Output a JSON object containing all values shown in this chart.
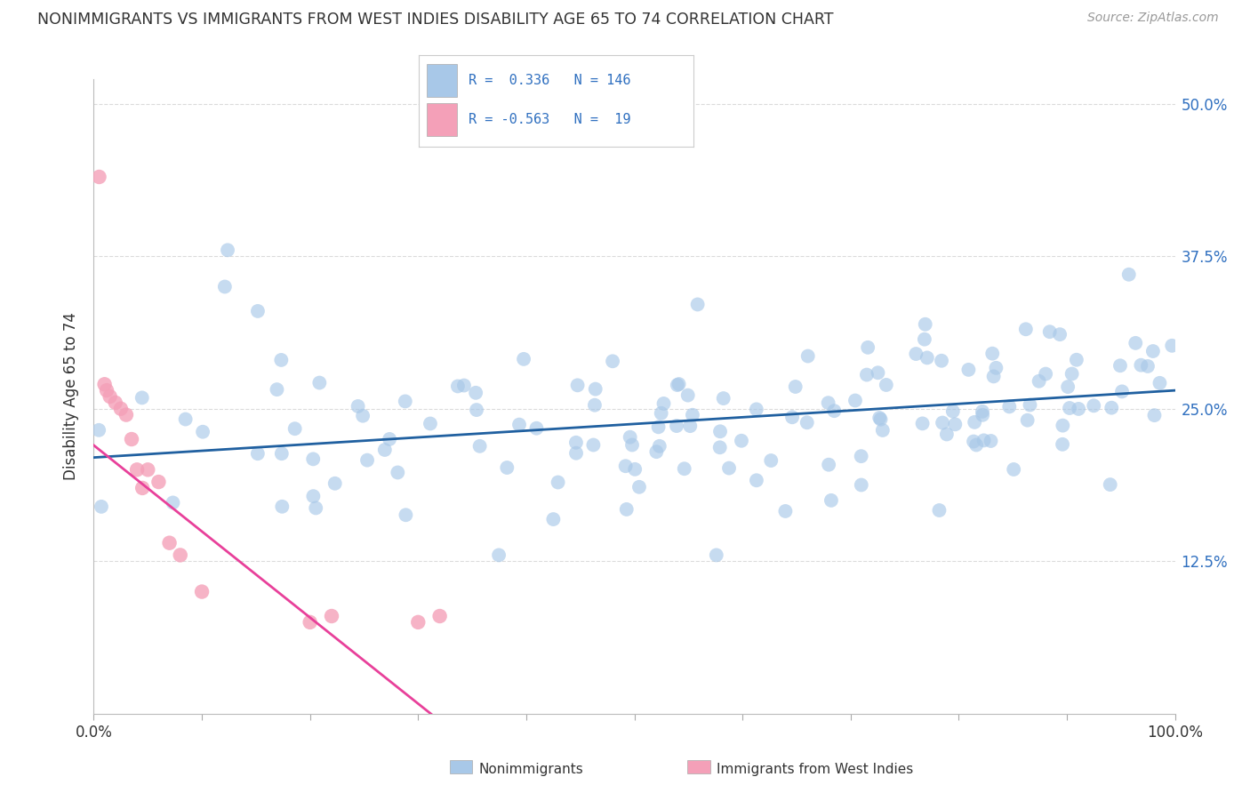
{
  "title": "NONIMMIGRANTS VS IMMIGRANTS FROM WEST INDIES DISABILITY AGE 65 TO 74 CORRELATION CHART",
  "source": "Source: ZipAtlas.com",
  "ylabel": "Disability Age 65 to 74",
  "xlim": [
    0,
    100
  ],
  "ylim": [
    0,
    52
  ],
  "ytick_values": [
    12.5,
    25.0,
    37.5,
    50.0
  ],
  "ytick_labels": [
    "12.5%",
    "25.0%",
    "37.5%",
    "50.0%"
  ],
  "xtick_values": [
    0,
    100
  ],
  "xtick_labels": [
    "0.0%",
    "100.0%"
  ],
  "blue_R": 0.336,
  "blue_N": 146,
  "pink_R": -0.563,
  "pink_N": 19,
  "blue_scatter_color": "#a8c8e8",
  "pink_scatter_color": "#f4a0b8",
  "blue_line_color": "#2060a0",
  "pink_line_color": "#e8409a",
  "text_color": "#333333",
  "grid_color": "#cccccc",
  "right_tick_color": "#3070c0",
  "legend_label_blue": "Nonimmigrants",
  "legend_label_pink": "Immigrants from West Indies",
  "background_color": "#ffffff",
  "blue_line_start_y": 21.0,
  "blue_line_end_y": 26.5,
  "pink_line_start_y": 22.0,
  "pink_line_end_x": 34.0,
  "pink_line_end_y": -2.0
}
